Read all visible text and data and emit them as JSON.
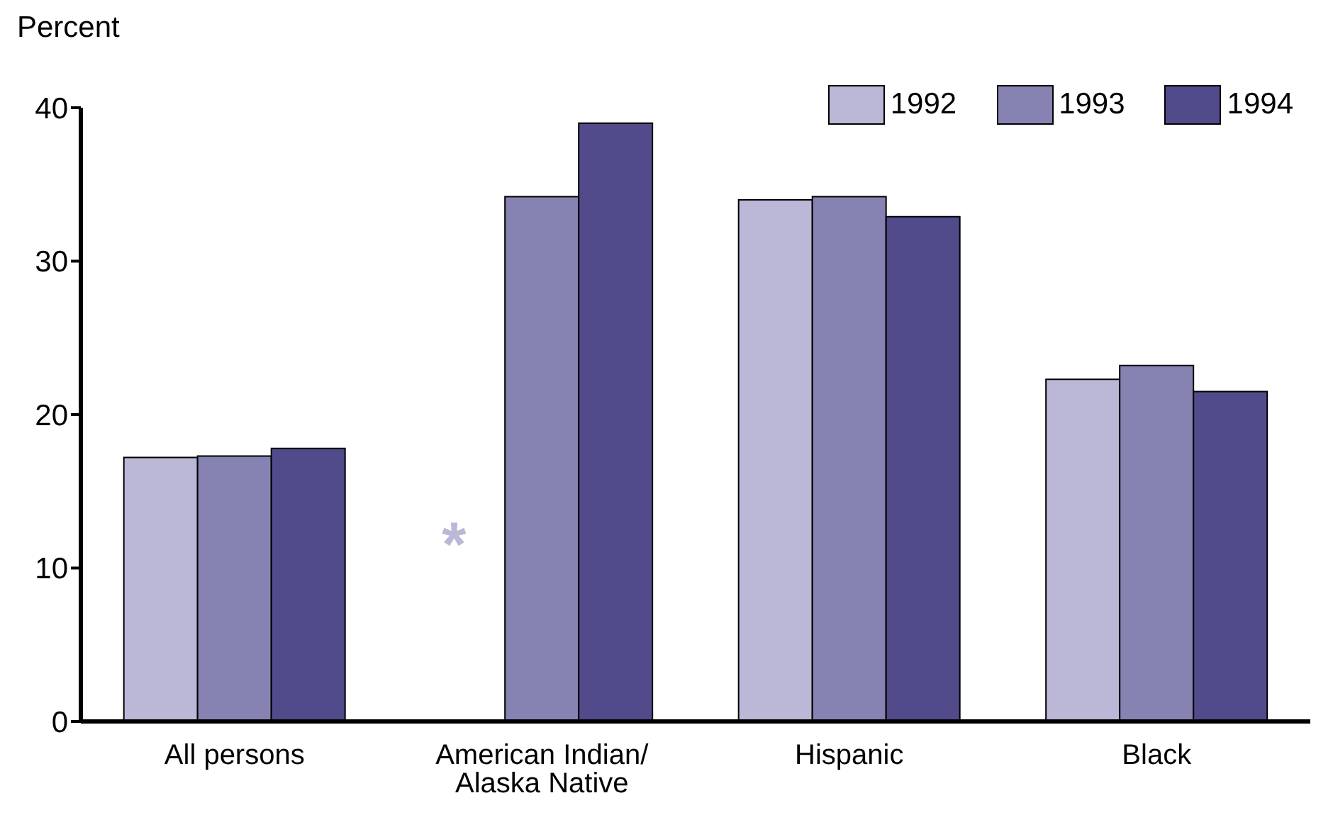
{
  "chart_data": {
    "type": "bar",
    "ylabel": "Percent",
    "categories": [
      "All persons",
      "American Indian/ Alaska Native",
      "Hispanic",
      "Black"
    ],
    "series": [
      {
        "name": "1992",
        "color": "#bab8d6",
        "values": [
          17.2,
          null,
          34.0,
          22.3
        ]
      },
      {
        "name": "1993",
        "color": "#8683b3",
        "values": [
          17.3,
          34.2,
          34.2,
          23.2
        ]
      },
      {
        "name": "1994",
        "color": "#514b8b",
        "values": [
          17.8,
          39.0,
          32.9,
          21.5
        ]
      }
    ],
    "ylim": [
      0,
      40
    ],
    "yticks": [
      0,
      10,
      20,
      30,
      40
    ],
    "grid": false,
    "legend": "top right",
    "annotations": [
      "*"
    ]
  }
}
